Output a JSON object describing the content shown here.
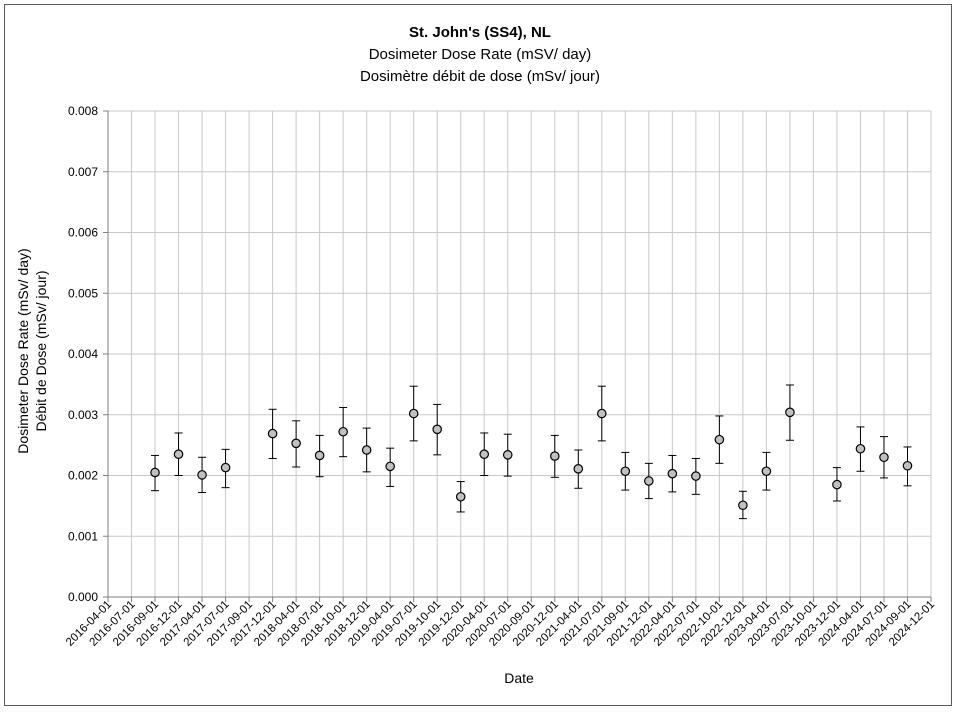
{
  "chart_data": {
    "type": "scatter",
    "title": "St. John's (SS4), NL",
    "subtitle": [
      "Dosimeter Dose Rate (mSV/ day)",
      "Dosimètre débit de dose (mSv/ jour)"
    ],
    "xlabel": "Date",
    "ylabel": [
      "Dosimeter Dose Rate (mSv/ day)",
      "Débit de Dose (mSv/ jour)"
    ],
    "ylim": [
      0,
      0.008
    ],
    "yticks": [
      "0.000",
      "0.001",
      "0.002",
      "0.003",
      "0.004",
      "0.005",
      "0.006",
      "0.007",
      "0.008"
    ],
    "xticks": [
      "2016-04-01",
      "2016-07-01",
      "2016-09-01",
      "2016-12-01",
      "2017-04-01",
      "2017-07-01",
      "2017-09-01",
      "2017-12-01",
      "2018-04-01",
      "2018-07-01",
      "2018-10-01",
      "2018-12-01",
      "2019-04-01",
      "2019-07-01",
      "2019-10-01",
      "2019-12-01",
      "2020-04-01",
      "2020-07-01",
      "2020-09-01",
      "2020-12-01",
      "2021-04-01",
      "2021-07-01",
      "2021-09-01",
      "2021-12-01",
      "2022-04-01",
      "2022-07-01",
      "2022-10-01",
      "2022-12-01",
      "2023-04-01",
      "2023-07-01",
      "2023-10-01",
      "2023-12-01",
      "2024-04-01",
      "2024-07-01",
      "2024-09-01",
      "2024-12-01"
    ],
    "grid": true,
    "points": [
      {
        "x": "2016-09-01",
        "y": 0.00205,
        "low": 0.00175,
        "high": 0.00233
      },
      {
        "x": "2016-12-01",
        "y": 0.00235,
        "low": 0.002,
        "high": 0.0027
      },
      {
        "x": "2017-04-01",
        "y": 0.00201,
        "low": 0.00172,
        "high": 0.0023
      },
      {
        "x": "2017-07-01",
        "y": 0.00213,
        "low": 0.0018,
        "high": 0.00243
      },
      {
        "x": "2017-12-01",
        "y": 0.00269,
        "low": 0.00228,
        "high": 0.00309
      },
      {
        "x": "2018-04-01",
        "y": 0.00253,
        "low": 0.00214,
        "high": 0.0029
      },
      {
        "x": "2018-07-01",
        "y": 0.00233,
        "low": 0.00198,
        "high": 0.00266
      },
      {
        "x": "2018-10-01",
        "y": 0.00272,
        "low": 0.00231,
        "high": 0.00312
      },
      {
        "x": "2018-12-01",
        "y": 0.00242,
        "low": 0.00206,
        "high": 0.00278
      },
      {
        "x": "2019-04-01",
        "y": 0.00215,
        "low": 0.00182,
        "high": 0.00245
      },
      {
        "x": "2019-07-01",
        "y": 0.00302,
        "low": 0.00257,
        "high": 0.00347
      },
      {
        "x": "2019-10-01",
        "y": 0.00276,
        "low": 0.00234,
        "high": 0.00317
      },
      {
        "x": "2019-12-01",
        "y": 0.00165,
        "low": 0.0014,
        "high": 0.0019
      },
      {
        "x": "2020-04-01",
        "y": 0.00235,
        "low": 0.002,
        "high": 0.0027
      },
      {
        "x": "2020-07-01",
        "y": 0.00234,
        "low": 0.00199,
        "high": 0.00268
      },
      {
        "x": "2020-12-01",
        "y": 0.00232,
        "low": 0.00197,
        "high": 0.00266
      },
      {
        "x": "2021-04-01",
        "y": 0.00211,
        "low": 0.00179,
        "high": 0.00242
      },
      {
        "x": "2021-07-01",
        "y": 0.00302,
        "low": 0.00257,
        "high": 0.00347
      },
      {
        "x": "2021-09-01",
        "y": 0.00207,
        "low": 0.00176,
        "high": 0.00238
      },
      {
        "x": "2021-12-01",
        "y": 0.00191,
        "low": 0.00162,
        "high": 0.0022
      },
      {
        "x": "2022-04-01",
        "y": 0.00203,
        "low": 0.00173,
        "high": 0.00233
      },
      {
        "x": "2022-07-01",
        "y": 0.00199,
        "low": 0.00169,
        "high": 0.00228
      },
      {
        "x": "2022-10-01",
        "y": 0.00259,
        "low": 0.0022,
        "high": 0.00298
      },
      {
        "x": "2022-12-01",
        "y": 0.00151,
        "low": 0.00129,
        "high": 0.00174
      },
      {
        "x": "2023-04-01",
        "y": 0.00207,
        "low": 0.00176,
        "high": 0.00238
      },
      {
        "x": "2023-07-01",
        "y": 0.00304,
        "low": 0.00258,
        "high": 0.00349
      },
      {
        "x": "2023-12-01",
        "y": 0.00185,
        "low": 0.00158,
        "high": 0.00213
      },
      {
        "x": "2024-04-01",
        "y": 0.00244,
        "low": 0.00207,
        "high": 0.0028
      },
      {
        "x": "2024-07-01",
        "y": 0.0023,
        "low": 0.00196,
        "high": 0.00264
      },
      {
        "x": "2024-09-01",
        "y": 0.00216,
        "low": 0.00183,
        "high": 0.00247
      }
    ],
    "colors": {
      "marker_fill": "#c0c0c0",
      "marker_stroke": "#000000",
      "errorbar": "#000000",
      "grid": "#c8c8c8",
      "axis": "#7f7f7f"
    }
  }
}
